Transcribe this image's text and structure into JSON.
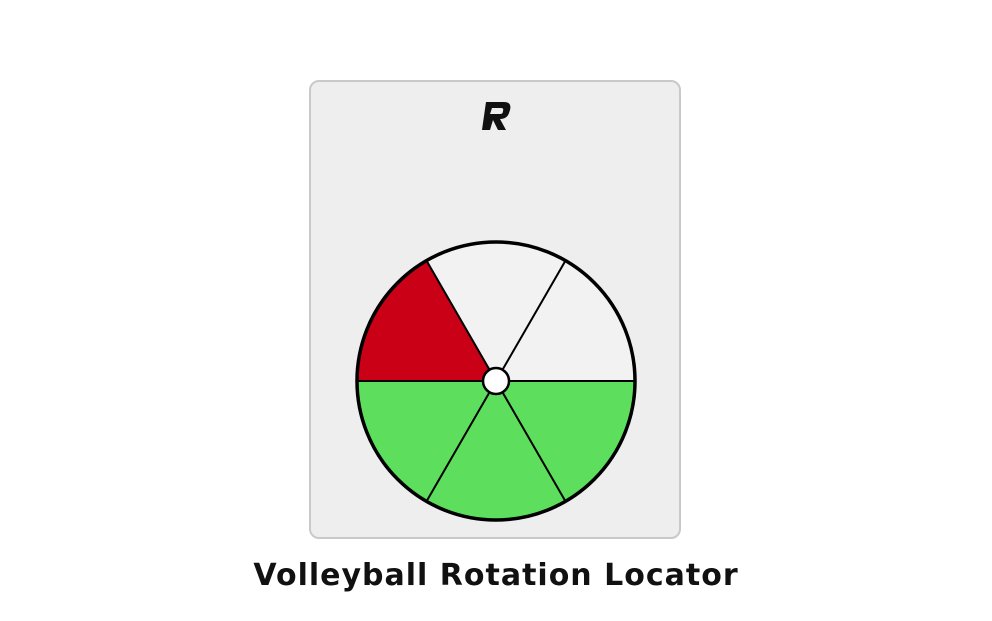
{
  "logo": {
    "name": "R",
    "color": "#111111"
  },
  "locator": {
    "segments": [
      {
        "position": "top-right",
        "status": "empty",
        "color": "#f2f2f2"
      },
      {
        "position": "top",
        "status": "empty",
        "color": "#f2f2f2"
      },
      {
        "position": "top-left",
        "status": "active",
        "color": "#c90016"
      },
      {
        "position": "bottom-left",
        "status": "filled",
        "color": "#5ddf5d"
      },
      {
        "position": "bottom",
        "status": "filled",
        "color": "#5ddf5d"
      },
      {
        "position": "bottom-right",
        "status": "filled",
        "color": "#5ddf5d"
      }
    ],
    "outline_color": "#000000",
    "hub_color": "#ffffff"
  },
  "caption": "Volleyball Rotation Locator"
}
